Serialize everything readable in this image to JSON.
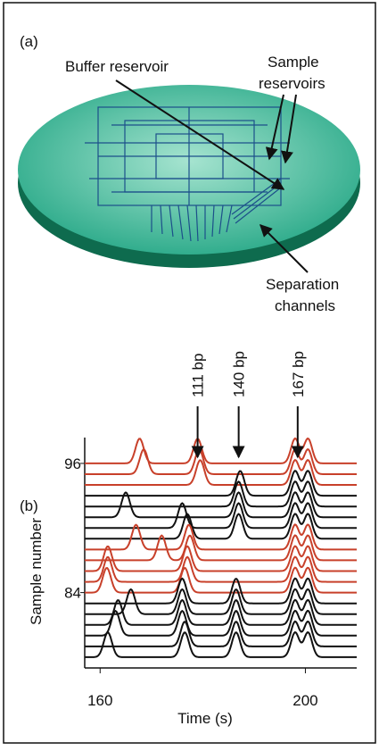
{
  "panel_a": {
    "label": "(a)",
    "annotations": {
      "buffer": "Buffer reservoir",
      "sample": [
        "Sample",
        "reservoirs"
      ],
      "separation": [
        "Separation",
        "channels"
      ]
    }
  },
  "chart_data": {
    "type": "traces",
    "panel_label": "(b)",
    "x_label": "Time (s)",
    "y_label": "Sample number",
    "xlim": [
      157,
      210
    ],
    "xticks": [
      160,
      200
    ],
    "ylim": [
      77,
      98.4
    ],
    "yticks": [
      84,
      96
    ],
    "annotations": [
      {
        "text": "111 bp",
        "x": 179
      },
      {
        "text": "140 bp",
        "x": 187
      },
      {
        "text": "167 bp",
        "x": 198.5
      }
    ],
    "series": [
      {
        "color": "#c8402a",
        "sample": 96,
        "peaks": [
          167.7,
          179,
          198,
          200.5
        ]
      },
      {
        "color": "#c8402a",
        "sample": 95,
        "peaks": [
          168.5,
          179.3,
          198,
          200.5
        ]
      },
      {
        "color": "#c8402a",
        "sample": 94,
        "peaks": [
          179.5,
          198,
          200.5
        ]
      },
      {
        "color": "#111111",
        "sample": 93,
        "peaks": [
          187.3,
          198,
          200.5
        ]
      },
      {
        "color": "#111111",
        "sample": 92,
        "peaks": [
          187,
          198,
          200.5
        ]
      },
      {
        "color": "#111111",
        "sample": 91,
        "peaks": [
          165,
          187,
          198,
          200.5
        ]
      },
      {
        "color": "#111111",
        "sample": 90,
        "peaks": [
          176,
          187,
          198,
          200.5
        ]
      },
      {
        "color": "#111111",
        "sample": 89,
        "peaks": [
          177,
          187,
          198,
          200.5
        ]
      },
      {
        "color": "#c8402a",
        "sample": 88,
        "peaks": [
          167,
          177.3,
          198,
          200.5
        ]
      },
      {
        "color": "#c8402a",
        "sample": 87,
        "peaks": [
          172,
          177.5,
          198,
          200.5
        ]
      },
      {
        "color": "#c8402a",
        "sample": 86,
        "peaks": [
          161.5,
          177,
          198,
          200.5
        ]
      },
      {
        "color": "#c8402a",
        "sample": 85,
        "peaks": [
          161.5,
          177,
          198,
          200.5
        ]
      },
      {
        "color": "#c8402a",
        "sample": 84,
        "peaks": [
          161.3,
          176.5,
          198,
          200.5
        ]
      },
      {
        "color": "#111111",
        "sample": 83,
        "peaks": [
          176,
          186.5,
          198,
          200.5
        ]
      },
      {
        "color": "#111111",
        "sample": 82,
        "peaks": [
          166,
          176,
          186.5,
          198,
          200.5
        ]
      },
      {
        "color": "#111111",
        "sample": 81,
        "peaks": [
          163.5,
          176,
          186.5,
          198,
          200.5
        ]
      },
      {
        "color": "#111111",
        "sample": 80,
        "peaks": [
          163,
          176,
          186.5,
          198,
          200.5
        ]
      },
      {
        "color": "#111111",
        "sample": 79,
        "peaks": [
          176.5,
          186.5,
          198,
          200.5
        ]
      },
      {
        "color": "#111111",
        "sample": 78,
        "peaks": [
          161.5,
          176.5,
          186.5,
          198,
          200.5
        ]
      }
    ]
  }
}
